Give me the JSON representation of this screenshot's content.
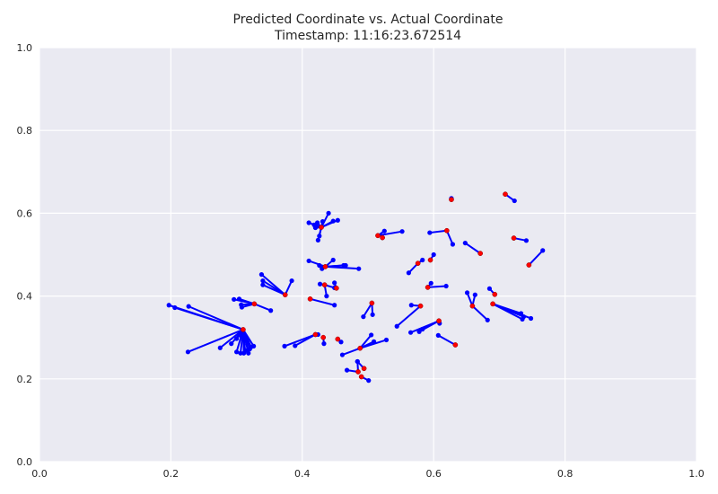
{
  "chart_data": {
    "type": "scatter",
    "title": "Predicted Coordinate vs. Actual Coordinate",
    "subtitle": "Timestamp: 11:16:23.672514",
    "xlabel": "",
    "ylabel": "",
    "xlim": [
      0.0,
      1.0
    ],
    "ylim": [
      0.0,
      1.0
    ],
    "grid": true,
    "x_ticks": [
      "0.0",
      "0.2",
      "0.4",
      "0.6",
      "0.8",
      "1.0"
    ],
    "y_ticks": [
      "0.0",
      "0.2",
      "0.4",
      "0.6",
      "0.8",
      "1.0"
    ],
    "colors": {
      "background": "#eaeaf2",
      "grid": "#ffffff",
      "predicted": "#0000ff",
      "actual": "#ff0000",
      "line": "#0000ff"
    },
    "groups": [
      {
        "actual": [
          0.627,
          0.633
        ],
        "predicted": [
          [
            0.627,
            0.636
          ]
        ]
      },
      {
        "actual": [
          0.709,
          0.646
        ],
        "predicted": [
          [
            0.723,
            0.63
          ]
        ]
      },
      {
        "actual": [
          0.429,
          0.566
        ],
        "predicted": [
          [
            0.41,
            0.577
          ],
          [
            0.418,
            0.572
          ],
          [
            0.423,
            0.577
          ],
          [
            0.431,
            0.58
          ],
          [
            0.44,
            0.6
          ],
          [
            0.447,
            0.581
          ],
          [
            0.454,
            0.583
          ],
          [
            0.42,
            0.565
          ],
          [
            0.424,
            0.535
          ],
          [
            0.426,
            0.545
          ]
        ]
      },
      {
        "actual": [
          0.515,
          0.546
        ],
        "predicted": [
          [
            0.525,
            0.557
          ],
          [
            0.552,
            0.556
          ]
        ]
      },
      {
        "actual": [
          0.522,
          0.541
        ],
        "predicted": []
      },
      {
        "actual": [
          0.62,
          0.558
        ],
        "predicted": [
          [
            0.594,
            0.553
          ],
          [
            0.629,
            0.525
          ]
        ]
      },
      {
        "actual": [
          0.722,
          0.54
        ],
        "predicted": [
          [
            0.741,
            0.534
          ]
        ]
      },
      {
        "actual": [
          0.671,
          0.503
        ],
        "predicted": [
          [
            0.648,
            0.528
          ]
        ]
      },
      {
        "actual": [
          0.745,
          0.475
        ],
        "predicted": [
          [
            0.766,
            0.51
          ]
        ]
      },
      {
        "actual": [
          0.595,
          0.487
        ],
        "predicted": [
          [
            0.6,
            0.5
          ]
        ]
      },
      {
        "actual": [
          0.576,
          0.479
        ],
        "predicted": [
          [
            0.562,
            0.456
          ],
          [
            0.583,
            0.487
          ]
        ]
      },
      {
        "actual": [
          0.435,
          0.471
        ],
        "predicted": [
          [
            0.41,
            0.485
          ],
          [
            0.426,
            0.474
          ],
          [
            0.43,
            0.466
          ],
          [
            0.447,
            0.487
          ],
          [
            0.463,
            0.474
          ],
          [
            0.486,
            0.466
          ],
          [
            0.466,
            0.474
          ]
        ]
      },
      {
        "actual": [
          0.434,
          0.427
        ],
        "predicted": [
          [
            0.427,
            0.429
          ],
          [
            0.437,
            0.4
          ],
          [
            0.449,
            0.42
          ]
        ]
      },
      {
        "actual": [
          0.452,
          0.419
        ],
        "predicted": [
          [
            0.449,
            0.432
          ]
        ]
      },
      {
        "actual": [
          0.374,
          0.403
        ],
        "predicted": [
          [
            0.338,
            0.452
          ],
          [
            0.34,
            0.437
          ],
          [
            0.34,
            0.427
          ],
          [
            0.384,
            0.437
          ]
        ]
      },
      {
        "actual": [
          0.412,
          0.393
        ],
        "predicted": [
          [
            0.449,
            0.378
          ]
        ]
      },
      {
        "actual": [
          0.327,
          0.381
        ],
        "predicted": [
          [
            0.296,
            0.392
          ],
          [
            0.304,
            0.393
          ],
          [
            0.307,
            0.379
          ],
          [
            0.308,
            0.373
          ],
          [
            0.352,
            0.365
          ]
        ]
      },
      {
        "actual": [
          0.506,
          0.383
        ],
        "predicted": [
          [
            0.493,
            0.35
          ],
          [
            0.507,
            0.355
          ]
        ]
      },
      {
        "actual": [
          0.591,
          0.421
        ],
        "predicted": [
          [
            0.596,
            0.431
          ],
          [
            0.619,
            0.424
          ]
        ]
      },
      {
        "actual": [
          0.58,
          0.376
        ],
        "predicted": [
          [
            0.566,
            0.378
          ],
          [
            0.544,
            0.327
          ]
        ]
      },
      {
        "actual": [
          0.659,
          0.376
        ],
        "predicted": [
          [
            0.651,
            0.408
          ],
          [
            0.663,
            0.403
          ],
          [
            0.682,
            0.342
          ]
        ]
      },
      {
        "actual": [
          0.693,
          0.404
        ],
        "predicted": [
          [
            0.685,
            0.418
          ]
        ]
      },
      {
        "actual": [
          0.69,
          0.381
        ],
        "predicted": [
          [
            0.733,
            0.358
          ],
          [
            0.737,
            0.35
          ],
          [
            0.748,
            0.346
          ],
          [
            0.735,
            0.344
          ]
        ]
      },
      {
        "actual": [
          0.608,
          0.34
        ],
        "predicted": [
          [
            0.565,
            0.312
          ],
          [
            0.578,
            0.314
          ],
          [
            0.583,
            0.32
          ],
          [
            0.609,
            0.334
          ]
        ]
      },
      {
        "actual": [
          0.31,
          0.319
        ],
        "predicted": [
          [
            0.197,
            0.378
          ],
          [
            0.206,
            0.372
          ],
          [
            0.227,
            0.375
          ],
          [
            0.226,
            0.265
          ],
          [
            0.275,
            0.275
          ],
          [
            0.292,
            0.285
          ],
          [
            0.3,
            0.297
          ],
          [
            0.306,
            0.305
          ],
          [
            0.3,
            0.265
          ],
          [
            0.306,
            0.262
          ],
          [
            0.311,
            0.262
          ],
          [
            0.313,
            0.268
          ],
          [
            0.317,
            0.27
          ],
          [
            0.32,
            0.272
          ],
          [
            0.322,
            0.277
          ],
          [
            0.326,
            0.279
          ],
          [
            0.318,
            0.262
          ]
        ]
      },
      {
        "actual": [
          0.42,
          0.307
        ],
        "predicted": [
          [
            0.373,
            0.279
          ],
          [
            0.389,
            0.28
          ],
          [
            0.424,
            0.307
          ]
        ]
      },
      {
        "actual": [
          0.432,
          0.3
        ],
        "predicted": [
          [
            0.433,
            0.285
          ]
        ]
      },
      {
        "actual": [
          0.454,
          0.296
        ],
        "predicted": [
          [
            0.459,
            0.289
          ]
        ]
      },
      {
        "actual": [
          0.488,
          0.274
        ],
        "predicted": [
          [
            0.461,
            0.258
          ],
          [
            0.505,
            0.306
          ],
          [
            0.509,
            0.29
          ],
          [
            0.528,
            0.294
          ]
        ]
      },
      {
        "actual": [
          0.633,
          0.282
        ],
        "predicted": [
          [
            0.607,
            0.305
          ]
        ]
      },
      {
        "actual": [
          0.485,
          0.217
        ],
        "predicted": [
          [
            0.468,
            0.221
          ],
          [
            0.484,
            0.242
          ]
        ]
      },
      {
        "actual": [
          0.494,
          0.225
        ],
        "predicted": [
          [
            0.484,
            0.242
          ]
        ]
      },
      {
        "actual": [
          0.49,
          0.205
        ],
        "predicted": [
          [
            0.501,
            0.196
          ]
        ]
      }
    ]
  }
}
